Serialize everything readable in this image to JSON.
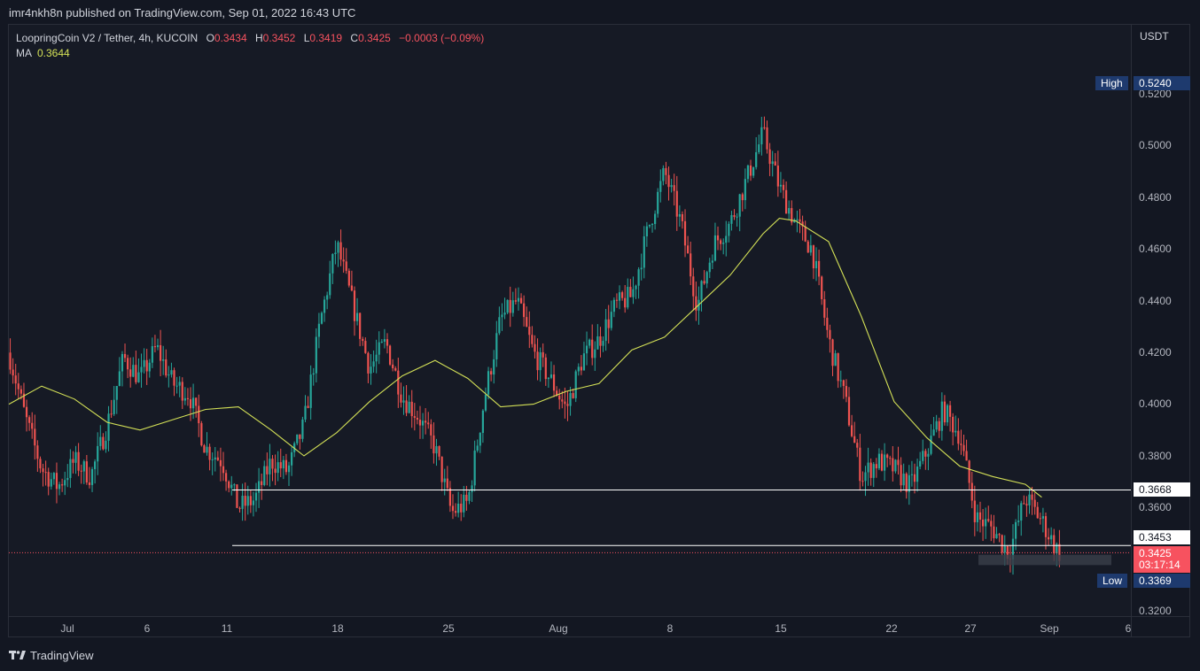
{
  "publisher": {
    "text": "imr4nkh8n published on TradingView.com, Sep 01, 2022 16:43 UTC"
  },
  "legend": {
    "symbol": "LoopringCoin V2 / Tether, 4h, KUCOIN",
    "o_label": "O",
    "o_value": "0.3434",
    "h_label": "H",
    "h_value": "0.3452",
    "l_label": "L",
    "l_value": "0.3419",
    "c_label": "C",
    "c_value": "0.3425",
    "change": "−0.0003 (−0.09%)",
    "ma_label": "MA",
    "ma_value": "0.3644"
  },
  "axis": {
    "currency": "USDT",
    "y_ticks": [
      "0.5200",
      "0.5000",
      "0.4800",
      "0.4600",
      "0.4400",
      "0.4200",
      "0.4000",
      "0.3800",
      "0.3600",
      "0.3200"
    ],
    "x_ticks": [
      "Jul",
      "6",
      "11",
      "18",
      "25",
      "Aug",
      "8",
      "15",
      "22",
      "27",
      "Sep",
      "6"
    ]
  },
  "tags": {
    "high_label": "High",
    "high_value": "0.5240",
    "low_label": "Low",
    "low_value": "0.3369",
    "level1": "0.3668",
    "level2": "0.3453",
    "last_price": "0.3425",
    "countdown": "03:17:14"
  },
  "colors": {
    "background": "#131722",
    "up": "#26a69a",
    "down": "#ef5350",
    "ma": "#d4e157",
    "hline": "#ffffff",
    "last": "#f7525f"
  },
  "brand": {
    "text": "TradingView",
    "icon": "tradingview-logo-icon"
  },
  "chart_data": {
    "type": "candlestick",
    "title": "LoopringCoin V2 / Tether, 4h, KUCOIN",
    "ylabel": "USDT",
    "ylim": [
      0.3175,
      0.5275
    ],
    "high": 0.524,
    "low": 0.3369,
    "last": 0.3425,
    "horizontal_lines": [
      0.3668,
      0.3453
    ],
    "close_path": [
      [
        "Jun 29",
        0.42
      ],
      [
        "Jun 30",
        0.395
      ],
      [
        "Jul 1",
        0.375
      ],
      [
        "Jul 2",
        0.368
      ],
      [
        "Jul 3",
        0.378
      ],
      [
        "Jul 4",
        0.372
      ],
      [
        "Jul 5",
        0.392
      ],
      [
        "Jul 6",
        0.418
      ],
      [
        "Jul 7",
        0.41
      ],
      [
        "Jul 8",
        0.422
      ],
      [
        "Jul 9",
        0.408
      ],
      [
        "Jul 10",
        0.404
      ],
      [
        "Jul 11",
        0.383
      ],
      [
        "Jul 12",
        0.378
      ],
      [
        "Jul 13",
        0.36
      ],
      [
        "Jul 14",
        0.363
      ],
      [
        "Jul 15",
        0.378
      ],
      [
        "Jul 16",
        0.374
      ],
      [
        "Jul 17",
        0.392
      ],
      [
        "Jul 18",
        0.432
      ],
      [
        "Jul 19",
        0.462
      ],
      [
        "Jul 20",
        0.438
      ],
      [
        "Jul 21",
        0.414
      ],
      [
        "Jul 22",
        0.424
      ],
      [
        "Jul 23",
        0.403
      ],
      [
        "Jul 24",
        0.395
      ],
      [
        "Jul 25",
        0.383
      ],
      [
        "Jul 26",
        0.358
      ],
      [
        "Jul 27",
        0.362
      ],
      [
        "Jul 28",
        0.402
      ],
      [
        "Jul 29",
        0.433
      ],
      [
        "Jul 30",
        0.44
      ],
      [
        "Jul 31",
        0.42
      ],
      [
        "Aug 1",
        0.41
      ],
      [
        "Aug 2",
        0.398
      ],
      [
        "Aug 3",
        0.418
      ],
      [
        "Aug 4",
        0.425
      ],
      [
        "Aug 5",
        0.438
      ],
      [
        "Aug 6",
        0.442
      ],
      [
        "Aug 7",
        0.468
      ],
      [
        "Aug 8",
        0.49
      ],
      [
        "Aug 9",
        0.47
      ],
      [
        "Aug 10",
        0.438
      ],
      [
        "Aug 11",
        0.462
      ],
      [
        "Aug 12",
        0.47
      ],
      [
        "Aug 13",
        0.487
      ],
      [
        "Aug 14",
        0.505
      ],
      [
        "Aug 15",
        0.484
      ],
      [
        "Aug 16",
        0.47
      ],
      [
        "Aug 17",
        0.46
      ],
      [
        "Aug 18",
        0.425
      ],
      [
        "Aug 19",
        0.402
      ],
      [
        "Aug 20",
        0.372
      ],
      [
        "Aug 21",
        0.378
      ],
      [
        "Aug 22",
        0.375
      ],
      [
        "Aug 23",
        0.368
      ],
      [
        "Aug 24",
        0.382
      ],
      [
        "Aug 25",
        0.398
      ],
      [
        "Aug 26",
        0.388
      ],
      [
        "Aug 27",
        0.356
      ],
      [
        "Aug 28",
        0.352
      ],
      [
        "Aug 29",
        0.342
      ],
      [
        "Aug 30",
        0.364
      ],
      [
        "Aug 31",
        0.355
      ],
      [
        "Sep 1",
        0.3425
      ]
    ],
    "ma_path": [
      [
        "Jun 29",
        0.4
      ],
      [
        "Jul 1",
        0.407
      ],
      [
        "Jul 3",
        0.402
      ],
      [
        "Jul 5",
        0.393
      ],
      [
        "Jul 7",
        0.39
      ],
      [
        "Jul 9",
        0.394
      ],
      [
        "Jul 11",
        0.398
      ],
      [
        "Jul 13",
        0.399
      ],
      [
        "Jul 15",
        0.39
      ],
      [
        "Jul 17",
        0.38
      ],
      [
        "Jul 19",
        0.389
      ],
      [
        "Jul 21",
        0.401
      ],
      [
        "Jul 23",
        0.411
      ],
      [
        "Jul 25",
        0.417
      ],
      [
        "Jul 27",
        0.41
      ],
      [
        "Jul 29",
        0.399
      ],
      [
        "Jul 31",
        0.4
      ],
      [
        "Aug 2",
        0.405
      ],
      [
        "Aug 4",
        0.408
      ],
      [
        "Aug 6",
        0.421
      ],
      [
        "Aug 8",
        0.426
      ],
      [
        "Aug 10",
        0.438
      ],
      [
        "Aug 12",
        0.45
      ],
      [
        "Aug 14",
        0.466
      ],
      [
        "Aug 15",
        0.472
      ],
      [
        "Aug 16",
        0.471
      ],
      [
        "Aug 18",
        0.463
      ],
      [
        "Aug 20",
        0.434
      ],
      [
        "Aug 22",
        0.401
      ],
      [
        "Aug 24",
        0.387
      ],
      [
        "Aug 26",
        0.376
      ],
      [
        "Aug 28",
        0.372
      ],
      [
        "Aug 30",
        0.369
      ],
      [
        "Aug 31",
        0.364
      ]
    ]
  }
}
